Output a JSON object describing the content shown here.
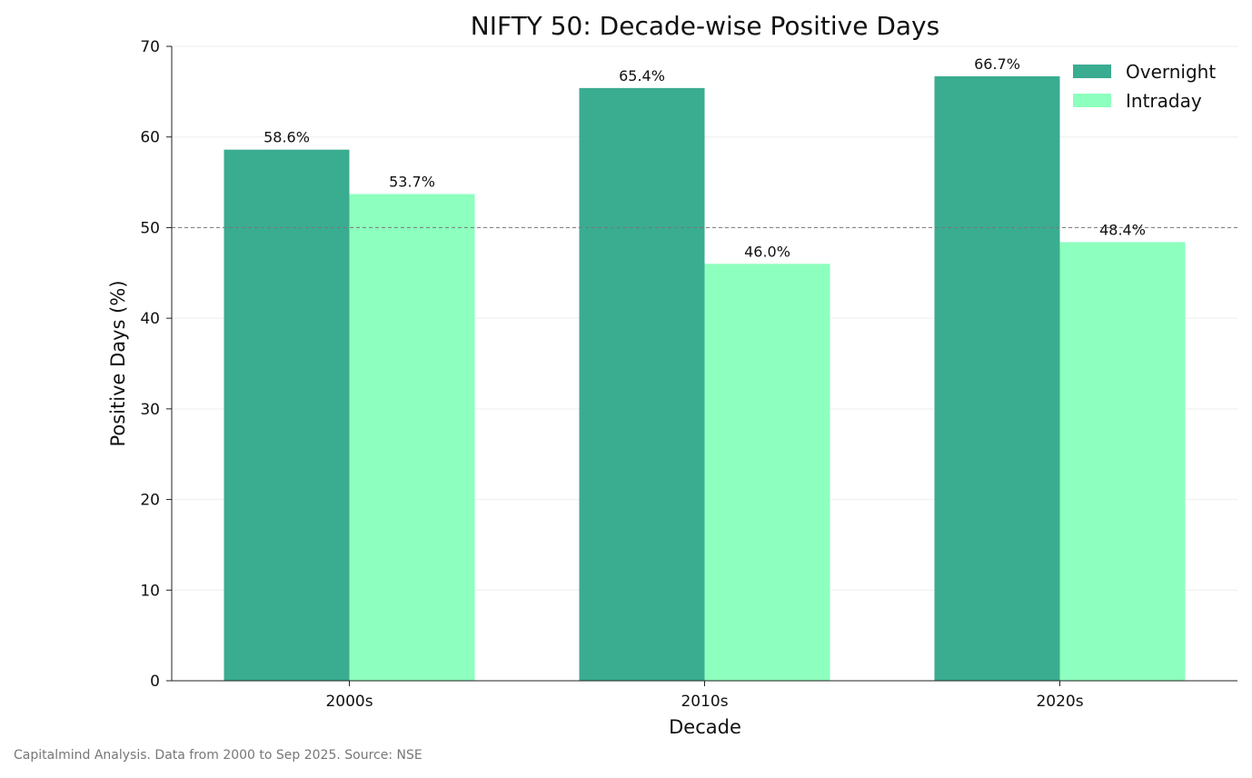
{
  "chart_data": {
    "type": "bar",
    "title": "NIFTY 50: Decade-wise Positive Days",
    "xlabel": "Decade",
    "ylabel": "Positive Days (%)",
    "categories": [
      "2000s",
      "2010s",
      "2020s"
    ],
    "series": [
      {
        "name": "Overnight",
        "values": [
          58.6,
          65.4,
          66.7
        ],
        "labels": [
          "58.6%",
          "65.4%",
          "66.7%"
        ],
        "color": "#3aac90"
      },
      {
        "name": "Intraday",
        "values": [
          53.7,
          46.0,
          48.4
        ],
        "labels": [
          "53.7%",
          "46.0%",
          "48.4%"
        ],
        "color": "#8dffbe"
      }
    ],
    "ylim": [
      0,
      70
    ],
    "yticks": [
      0,
      10,
      20,
      30,
      40,
      50,
      60,
      70
    ],
    "reference_line": 50,
    "grid": true,
    "legend_position": "top-right"
  },
  "footnote": "Capitalmind Analysis. Data from 2000 to Sep 2025. Source: NSE"
}
